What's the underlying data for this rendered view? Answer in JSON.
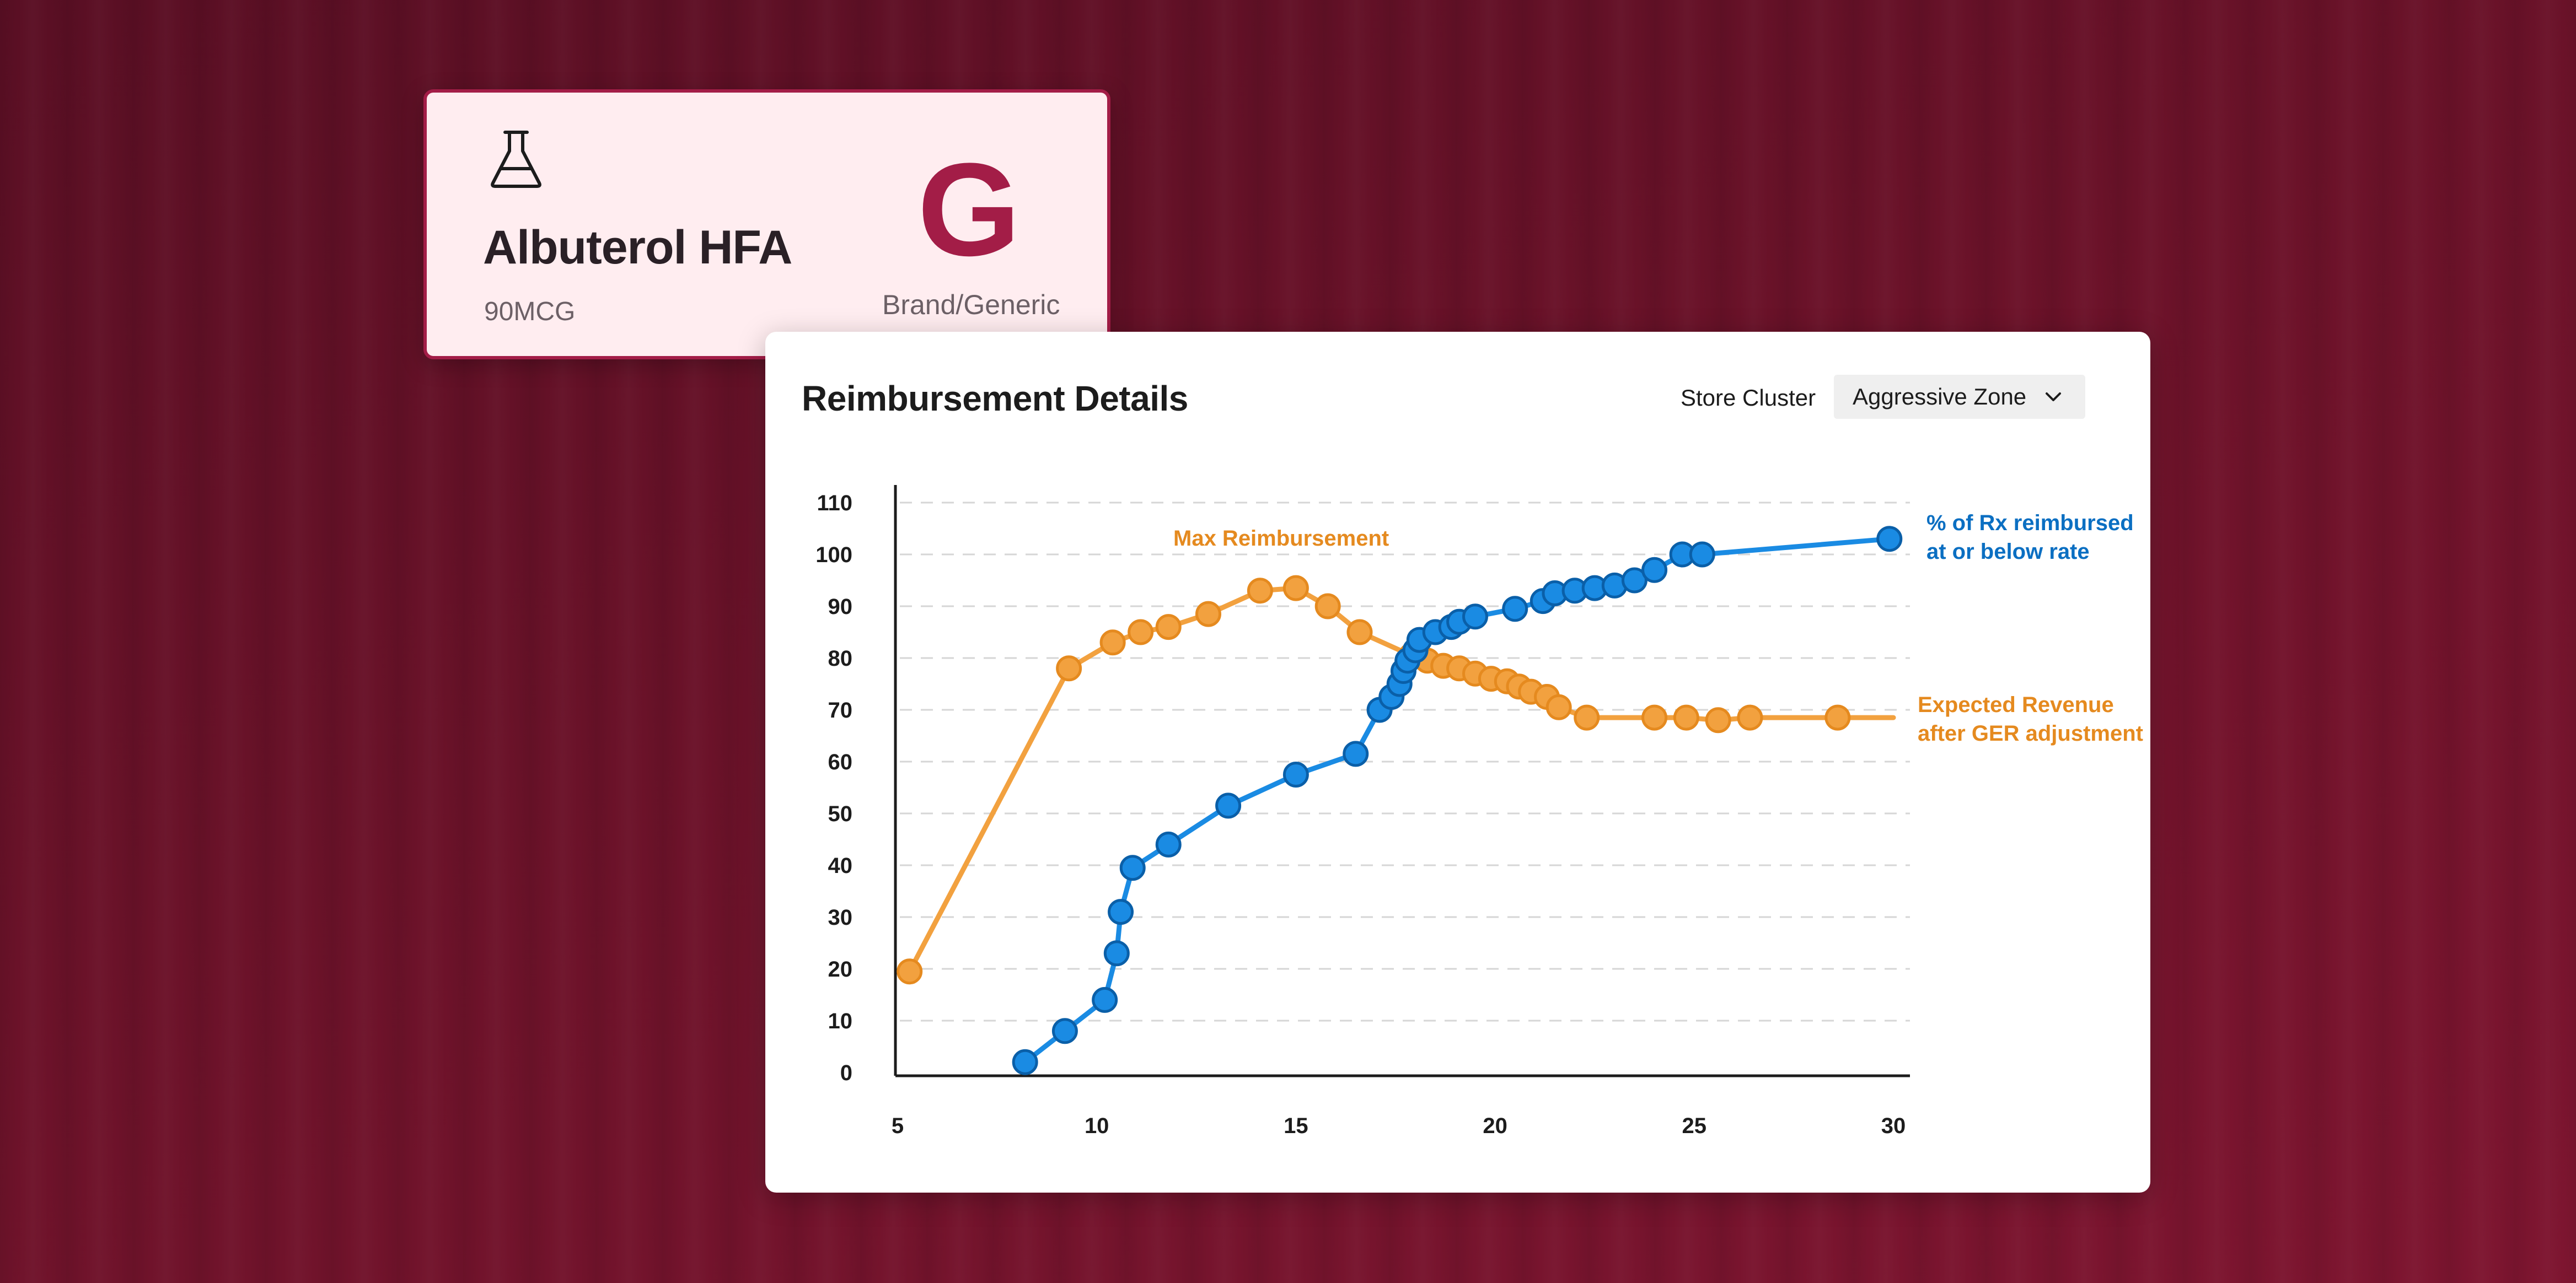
{
  "drug_card": {
    "icon": "flask-icon",
    "name": "Albuterol HFA",
    "strength": "90MCG",
    "type_letter": "G",
    "type_label": "Brand/Generic"
  },
  "panel": {
    "title": "Reimbursement Details",
    "store_cluster_label": "Store Cluster",
    "store_cluster_value": "Aggressive Zone"
  },
  "colors": {
    "background": "#6a1229",
    "accent": "#a31d47",
    "blue_series": "#1a8be3",
    "orange_series": "#f2a13f"
  },
  "chart_data": {
    "type": "line",
    "title": "",
    "xlabel": "",
    "ylabel": "",
    "xlim": [
      5,
      30
    ],
    "ylim": [
      0,
      110
    ],
    "x_ticks": [
      5,
      10,
      15,
      20,
      25,
      30
    ],
    "y_ticks": [
      0,
      10,
      20,
      30,
      40,
      50,
      60,
      70,
      80,
      90,
      100,
      110
    ],
    "grid": "horizontal-dashed",
    "series": [
      {
        "name": "% of Rx reimbursed at or below rate",
        "label_lines": [
          "% of Rx reimbursed",
          "at or below rate"
        ],
        "color": "#1a8be3",
        "points": [
          [
            8.2,
            2
          ],
          [
            9.2,
            8
          ],
          [
            10.2,
            14
          ],
          [
            10.5,
            23
          ],
          [
            10.6,
            31
          ],
          [
            10.9,
            39.5
          ],
          [
            11.8,
            44
          ],
          [
            13.3,
            51.5
          ],
          [
            15.0,
            57.5
          ],
          [
            16.5,
            61.5
          ],
          [
            17.1,
            70
          ],
          [
            17.4,
            72.5
          ],
          [
            17.6,
            75
          ],
          [
            17.7,
            77.5
          ],
          [
            17.8,
            79.5
          ],
          [
            18.0,
            81.5
          ],
          [
            18.1,
            83.5
          ],
          [
            18.5,
            85
          ],
          [
            18.9,
            86
          ],
          [
            19.1,
            87
          ],
          [
            19.5,
            88
          ],
          [
            20.5,
            89.5
          ],
          [
            21.2,
            91
          ],
          [
            21.5,
            92.5
          ],
          [
            22.0,
            93
          ],
          [
            22.5,
            93.5
          ],
          [
            23.0,
            94
          ],
          [
            23.5,
            95
          ],
          [
            24.0,
            97
          ],
          [
            24.7,
            100
          ],
          [
            25.2,
            100
          ],
          [
            29.9,
            103
          ]
        ]
      },
      {
        "name": "Expected Revenue after GER adjustment",
        "label_lines": [
          "Expected Revenue",
          "after GER adjustment"
        ],
        "annotation": "Max Reimbursement",
        "color": "#f2a13f",
        "line_extends_to": 30,
        "points": [
          [
            5.3,
            19.5
          ],
          [
            9.3,
            78
          ],
          [
            10.4,
            83
          ],
          [
            11.1,
            85
          ],
          [
            11.8,
            86
          ],
          [
            12.8,
            88.5
          ],
          [
            14.1,
            93
          ],
          [
            15.0,
            93.5
          ],
          [
            15.8,
            90
          ],
          [
            16.6,
            85
          ],
          [
            17.9,
            80.5
          ],
          [
            18.3,
            79.5
          ],
          [
            18.7,
            78.5
          ],
          [
            19.1,
            78
          ],
          [
            19.5,
            77
          ],
          [
            19.9,
            76
          ],
          [
            20.3,
            75.5
          ],
          [
            20.6,
            74.5
          ],
          [
            20.9,
            73.5
          ],
          [
            21.3,
            72.5
          ],
          [
            21.6,
            70.5
          ],
          [
            22.3,
            68.5
          ],
          [
            24.0,
            68.5
          ],
          [
            24.8,
            68.5
          ],
          [
            25.6,
            68
          ],
          [
            26.4,
            68.5
          ],
          [
            28.6,
            68.5
          ]
        ]
      }
    ]
  }
}
